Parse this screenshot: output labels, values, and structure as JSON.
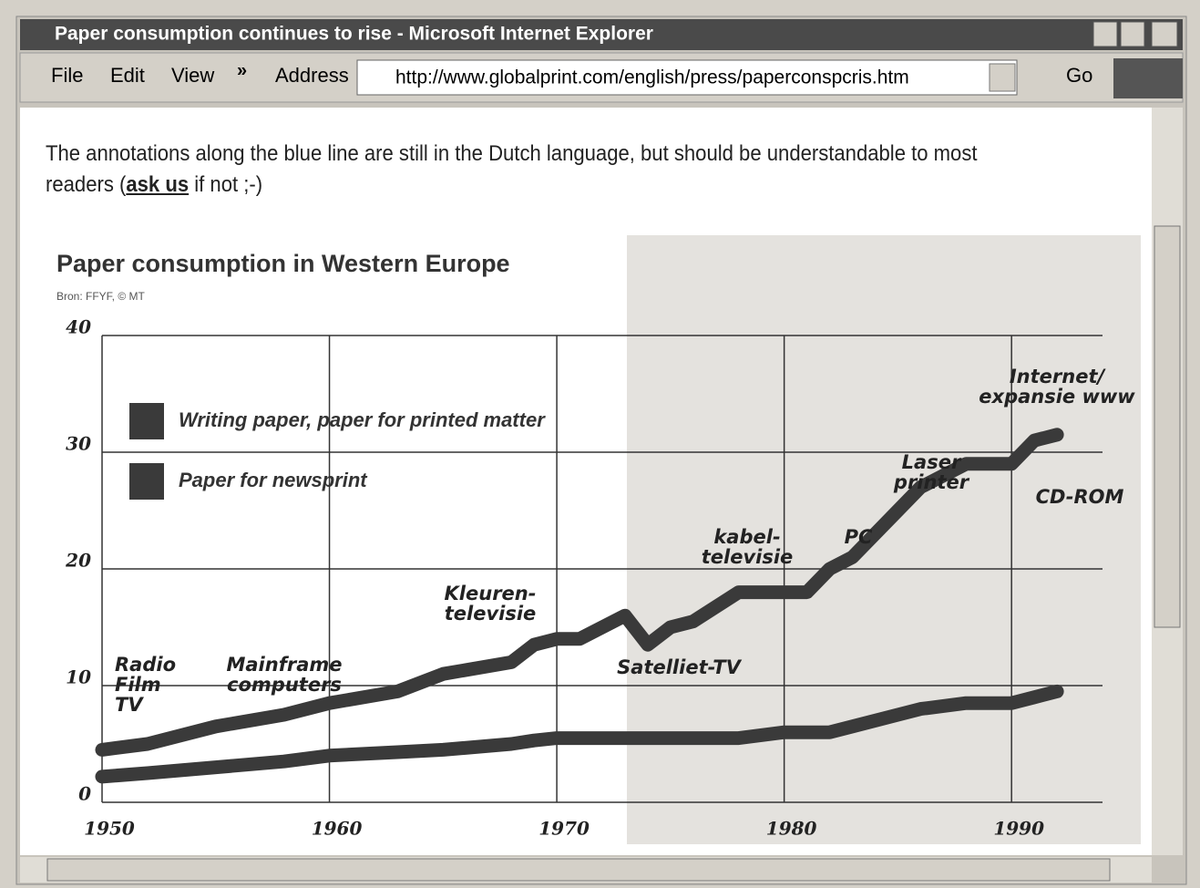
{
  "window": {
    "title": "Paper consumption continues to rise - Microsoft Internet Explorer",
    "menu": [
      "File",
      "Edit",
      "View",
      "»"
    ],
    "address_label": "Address",
    "url": "http://www.globalprint.com/english/press/paperconspcris.htm",
    "go": "Go"
  },
  "page": {
    "intro_start": "The annotations along the blue line are still in the Dutch language, but should be understandable to most readers (",
    "link": "ask us",
    "intro_end": " if not ;-)"
  },
  "chart_data": {
    "type": "line",
    "title": "Paper consumption in Western Europe",
    "subtitle": "Bron: FFYF, © MT",
    "x": [
      1950,
      1952,
      1955,
      1958,
      1960,
      1963,
      1965,
      1968,
      1969,
      1970,
      1971,
      1973,
      1974,
      1975,
      1976,
      1978,
      1980,
      1981,
      1982,
      1983,
      1985,
      1986,
      1988,
      1989,
      1990,
      1991,
      1992
    ],
    "series": [
      {
        "name": "Writing paper, paper for printed matter",
        "color": "#3a3a3a",
        "values": [
          4.5,
          5,
          6.5,
          7.5,
          8.5,
          9.5,
          11,
          12,
          13.5,
          14,
          14,
          16,
          13.5,
          15,
          15.5,
          18,
          18,
          18,
          20,
          21,
          25,
          27,
          29,
          29,
          29,
          31,
          31.5
        ]
      },
      {
        "name": "Paper for newsprint",
        "color": "#3a3a3a",
        "values": [
          2.2,
          2.5,
          3,
          3.5,
          4,
          4.3,
          4.5,
          5,
          5.3,
          5.5,
          5.5,
          5.5,
          5.5,
          5.5,
          5.5,
          5.5,
          6,
          6,
          6,
          6.5,
          7.5,
          8,
          8.5,
          8.5,
          8.5,
          9,
          9.5
        ]
      }
    ],
    "xlim": [
      1950,
      1994
    ],
    "xticks": [
      1950,
      1960,
      1970,
      1980,
      1990
    ],
    "ylim": [
      0,
      40
    ],
    "yticks": [
      0,
      10,
      20,
      30,
      40
    ],
    "grid": true,
    "annotations": [
      [
        "Radio",
        "Film",
        "TV"
      ],
      [
        "Mainframe",
        "computers"
      ],
      [
        "Kleuren-",
        "televisie"
      ],
      [
        "Satelliet-TV"
      ],
      [
        "kabel-",
        "televisie"
      ],
      [
        "PC"
      ],
      [
        "Laser",
        "printer"
      ],
      [
        "Internet/",
        "expansie www"
      ],
      [
        "CD-ROM"
      ]
    ]
  }
}
